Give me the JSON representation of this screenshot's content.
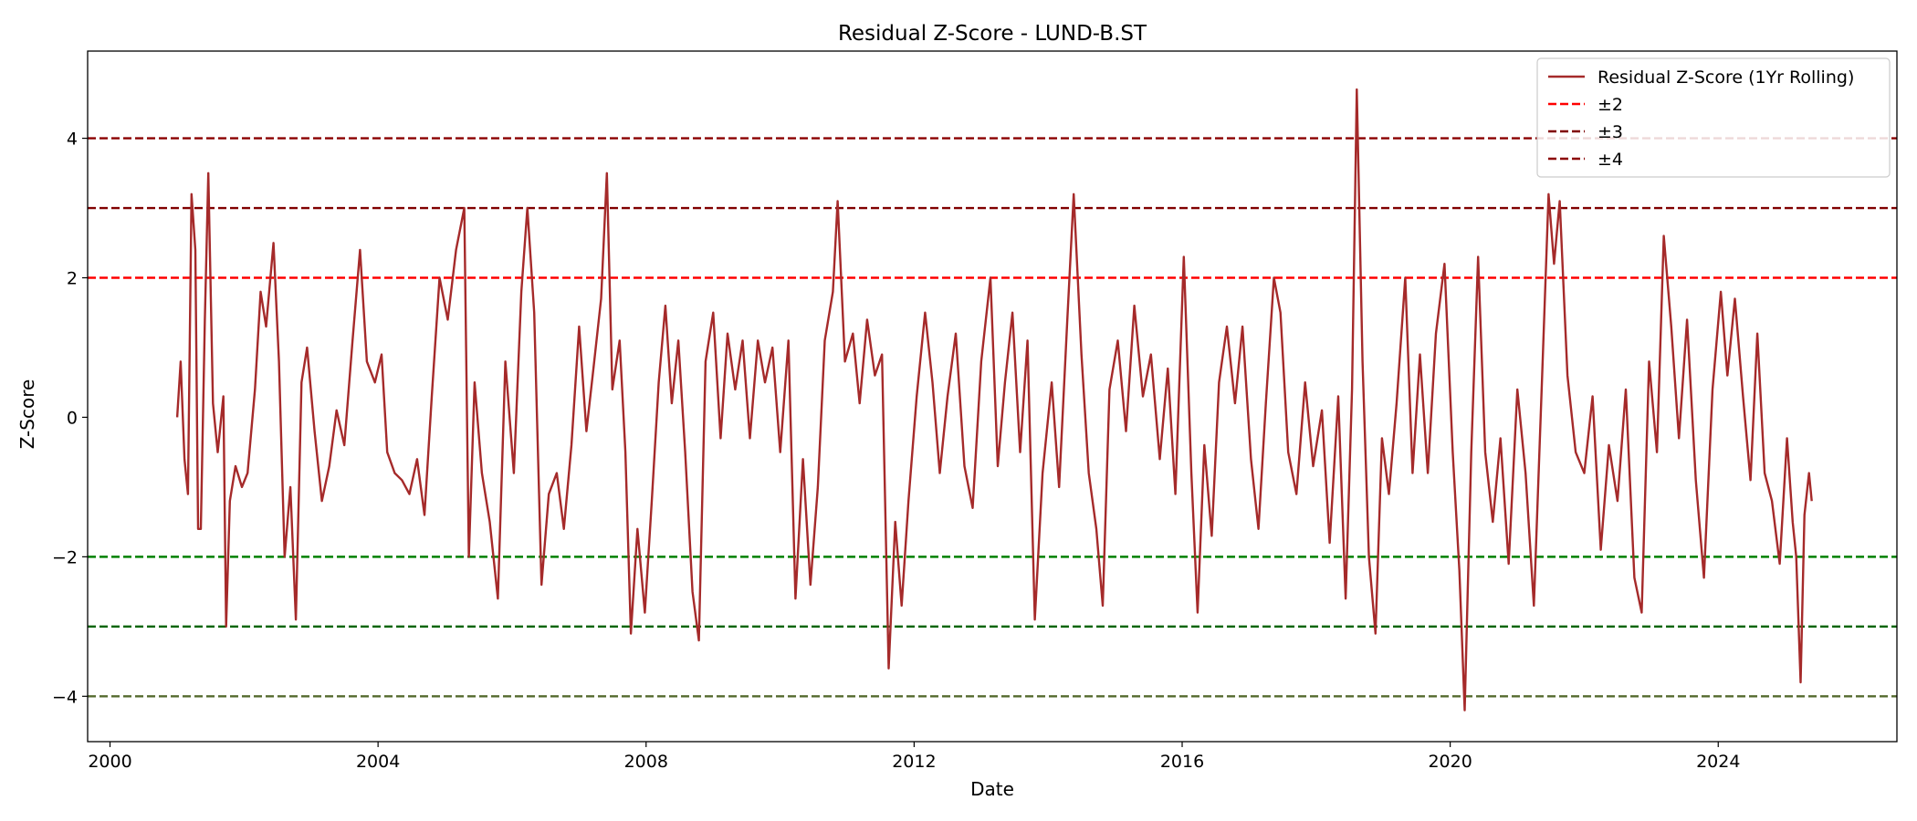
{
  "chart_data": {
    "type": "line",
    "title": "Residual Z-Score - LUND-B.ST",
    "xlabel": "Date",
    "ylabel": "Z-Score",
    "xlim": [
      "1999-09-01",
      "2026-09-01"
    ],
    "ylim": [
      -4.65,
      5.25
    ],
    "grid": false,
    "legend_position": "top-right",
    "x_ticks": [
      {
        "value": "2000-01-01",
        "label": "2000"
      },
      {
        "value": "2004-01-01",
        "label": "2004"
      },
      {
        "value": "2008-01-01",
        "label": "2008"
      },
      {
        "value": "2012-01-01",
        "label": "2012"
      },
      {
        "value": "2016-01-01",
        "label": "2016"
      },
      {
        "value": "2020-01-01",
        "label": "2020"
      },
      {
        "value": "2024-01-01",
        "label": "2024"
      }
    ],
    "y_ticks": [
      {
        "value": -4,
        "label": "−4"
      },
      {
        "value": -2,
        "label": "−2"
      },
      {
        "value": 0,
        "label": "0"
      },
      {
        "value": 2,
        "label": "2"
      },
      {
        "value": 4,
        "label": "4"
      }
    ],
    "reference_lines": [
      {
        "y": 4,
        "color": "#8b0000",
        "style": "dashed",
        "legend": "±4"
      },
      {
        "y": 3,
        "color": "#800000",
        "style": "dashed",
        "legend": "±3"
      },
      {
        "y": 2,
        "color": "#ff0000",
        "style": "dashed",
        "legend": "±2"
      },
      {
        "y": -2,
        "color": "#008000",
        "style": "dashed"
      },
      {
        "y": -3,
        "color": "#006400",
        "style": "dashed"
      },
      {
        "y": -4,
        "color": "#556b2f",
        "style": "dashed"
      }
    ],
    "series": [
      {
        "name": "Residual Z-Score (1Yr Rolling)",
        "color": "#a52a2a",
        "points": [
          [
            "2001-01-01",
            0.0
          ],
          [
            "2001-01-20",
            0.8
          ],
          [
            "2001-02-10",
            -0.6
          ],
          [
            "2001-03-01",
            -1.1
          ],
          [
            "2001-03-20",
            3.2
          ],
          [
            "2001-04-10",
            2.4
          ],
          [
            "2001-04-25",
            -1.6
          ],
          [
            "2001-05-10",
            -1.6
          ],
          [
            "2001-06-01",
            1.4
          ],
          [
            "2001-06-20",
            3.5
          ],
          [
            "2001-07-15",
            0.2
          ],
          [
            "2001-08-10",
            -0.5
          ],
          [
            "2001-09-10",
            0.3
          ],
          [
            "2001-09-25",
            -3.0
          ],
          [
            "2001-10-15",
            -1.2
          ],
          [
            "2001-11-15",
            -0.7
          ],
          [
            "2001-12-20",
            -1.0
          ],
          [
            "2002-01-20",
            -0.8
          ],
          [
            "2002-03-01",
            0.4
          ],
          [
            "2002-04-01",
            1.8
          ],
          [
            "2002-05-01",
            1.3
          ],
          [
            "2002-06-10",
            2.5
          ],
          [
            "2002-07-10",
            0.8
          ],
          [
            "2002-08-10",
            -2.0
          ],
          [
            "2002-09-10",
            -1.0
          ],
          [
            "2002-10-10",
            -2.9
          ],
          [
            "2002-11-10",
            0.5
          ],
          [
            "2002-12-10",
            1.0
          ],
          [
            "2003-01-20",
            -0.2
          ],
          [
            "2003-03-01",
            -1.2
          ],
          [
            "2003-04-10",
            -0.7
          ],
          [
            "2003-05-20",
            0.1
          ],
          [
            "2003-07-01",
            -0.4
          ],
          [
            "2003-08-15",
            1.1
          ],
          [
            "2003-09-25",
            2.4
          ],
          [
            "2003-11-01",
            0.8
          ],
          [
            "2003-12-15",
            0.5
          ],
          [
            "2004-01-20",
            0.9
          ],
          [
            "2004-02-20",
            -0.5
          ],
          [
            "2004-04-01",
            -0.8
          ],
          [
            "2004-05-10",
            -0.9
          ],
          [
            "2004-06-20",
            -1.1
          ],
          [
            "2004-08-01",
            -0.6
          ],
          [
            "2004-09-10",
            -1.4
          ],
          [
            "2004-10-20",
            0.3
          ],
          [
            "2004-12-01",
            2.0
          ],
          [
            "2005-01-15",
            1.4
          ],
          [
            "2005-03-01",
            2.4
          ],
          [
            "2005-04-15",
            3.0
          ],
          [
            "2005-05-10",
            -2.0
          ],
          [
            "2005-06-10",
            0.5
          ],
          [
            "2005-07-20",
            -0.8
          ],
          [
            "2005-09-01",
            -1.5
          ],
          [
            "2005-10-15",
            -2.6
          ],
          [
            "2005-11-25",
            0.8
          ],
          [
            "2006-01-10",
            -0.8
          ],
          [
            "2006-02-20",
            1.8
          ],
          [
            "2006-03-25",
            3.0
          ],
          [
            "2006-05-01",
            1.5
          ],
          [
            "2006-06-10",
            -2.4
          ],
          [
            "2006-07-20",
            -1.1
          ],
          [
            "2006-09-01",
            -0.8
          ],
          [
            "2006-10-10",
            -1.6
          ],
          [
            "2006-11-20",
            -0.4
          ],
          [
            "2007-01-01",
            1.3
          ],
          [
            "2007-02-10",
            -0.2
          ],
          [
            "2007-03-20",
            0.7
          ],
          [
            "2007-05-01",
            1.7
          ],
          [
            "2007-06-01",
            3.5
          ],
          [
            "2007-07-01",
            0.4
          ],
          [
            "2007-08-10",
            1.1
          ],
          [
            "2007-09-10",
            -0.5
          ],
          [
            "2007-10-10",
            -3.1
          ],
          [
            "2007-11-15",
            -1.6
          ],
          [
            "2007-12-25",
            -2.8
          ],
          [
            "2008-02-01",
            -1.2
          ],
          [
            "2008-03-10",
            0.5
          ],
          [
            "2008-04-15",
            1.6
          ],
          [
            "2008-05-20",
            0.2
          ],
          [
            "2008-06-25",
            1.1
          ],
          [
            "2008-08-01",
            -0.5
          ],
          [
            "2008-09-10",
            -2.5
          ],
          [
            "2008-10-15",
            -3.2
          ],
          [
            "2008-11-20",
            0.8
          ],
          [
            "2009-01-01",
            1.5
          ],
          [
            "2009-02-10",
            -0.3
          ],
          [
            "2009-03-20",
            1.2
          ],
          [
            "2009-05-01",
            0.4
          ],
          [
            "2009-06-10",
            1.1
          ],
          [
            "2009-07-20",
            -0.3
          ],
          [
            "2009-09-01",
            1.1
          ],
          [
            "2009-10-10",
            0.5
          ],
          [
            "2009-11-20",
            1.0
          ],
          [
            "2010-01-01",
            -0.5
          ],
          [
            "2010-02-15",
            1.1
          ],
          [
            "2010-03-25",
            -2.6
          ],
          [
            "2010-05-05",
            -0.6
          ],
          [
            "2010-06-15",
            -2.4
          ],
          [
            "2010-07-25",
            -1.0
          ],
          [
            "2010-09-01",
            1.1
          ],
          [
            "2010-10-15",
            1.8
          ],
          [
            "2010-11-10",
            3.1
          ],
          [
            "2010-12-20",
            0.8
          ],
          [
            "2011-02-01",
            1.2
          ],
          [
            "2011-03-10",
            0.2
          ],
          [
            "2011-04-20",
            1.4
          ],
          [
            "2011-06-01",
            0.6
          ],
          [
            "2011-07-10",
            0.9
          ],
          [
            "2011-08-15",
            -3.6
          ],
          [
            "2011-09-20",
            -1.5
          ],
          [
            "2011-10-25",
            -2.7
          ],
          [
            "2011-12-01",
            -1.2
          ],
          [
            "2012-01-15",
            0.3
          ],
          [
            "2012-03-01",
            1.5
          ],
          [
            "2012-04-10",
            0.5
          ],
          [
            "2012-05-20",
            -0.8
          ],
          [
            "2012-07-01",
            0.3
          ],
          [
            "2012-08-15",
            1.2
          ],
          [
            "2012-10-01",
            -0.7
          ],
          [
            "2012-11-15",
            -1.3
          ],
          [
            "2013-01-01",
            0.8
          ],
          [
            "2013-02-20",
            2.0
          ],
          [
            "2013-04-01",
            -0.7
          ],
          [
            "2013-05-10",
            0.5
          ],
          [
            "2013-06-20",
            1.5
          ],
          [
            "2013-08-01",
            -0.5
          ],
          [
            "2013-09-10",
            1.1
          ],
          [
            "2013-10-20",
            -2.9
          ],
          [
            "2013-12-01",
            -0.8
          ],
          [
            "2014-01-20",
            0.5
          ],
          [
            "2014-03-01",
            -1.0
          ],
          [
            "2014-04-15",
            1.4
          ],
          [
            "2014-05-20",
            3.2
          ],
          [
            "2014-07-01",
            0.9
          ],
          [
            "2014-08-10",
            -0.8
          ],
          [
            "2014-09-20",
            -1.6
          ],
          [
            "2014-10-25",
            -2.7
          ],
          [
            "2014-12-01",
            0.4
          ],
          [
            "2015-01-15",
            1.1
          ],
          [
            "2015-03-01",
            -0.2
          ],
          [
            "2015-04-15",
            1.6
          ],
          [
            "2015-06-01",
            0.3
          ],
          [
            "2015-07-15",
            0.9
          ],
          [
            "2015-09-01",
            -0.6
          ],
          [
            "2015-10-15",
            0.7
          ],
          [
            "2015-11-25",
            -1.1
          ],
          [
            "2016-01-10",
            2.3
          ],
          [
            "2016-02-20",
            -0.8
          ],
          [
            "2016-03-25",
            -2.8
          ],
          [
            "2016-05-01",
            -0.4
          ],
          [
            "2016-06-10",
            -1.7
          ],
          [
            "2016-07-20",
            0.5
          ],
          [
            "2016-09-01",
            1.3
          ],
          [
            "2016-10-15",
            0.2
          ],
          [
            "2016-11-25",
            1.3
          ],
          [
            "2017-01-10",
            -0.6
          ],
          [
            "2017-02-20",
            -1.6
          ],
          [
            "2017-04-01",
            0.2
          ],
          [
            "2017-05-15",
            2.0
          ],
          [
            "2017-06-20",
            1.5
          ],
          [
            "2017-08-01",
            -0.5
          ],
          [
            "2017-09-15",
            -1.1
          ],
          [
            "2017-11-01",
            0.5
          ],
          [
            "2017-12-15",
            -0.7
          ],
          [
            "2018-02-01",
            0.1
          ],
          [
            "2018-03-15",
            -1.8
          ],
          [
            "2018-05-01",
            0.3
          ],
          [
            "2018-06-10",
            -2.6
          ],
          [
            "2018-07-15",
            0.4
          ],
          [
            "2018-08-10",
            4.7
          ],
          [
            "2018-09-10",
            0.8
          ],
          [
            "2018-10-15",
            -2.0
          ],
          [
            "2018-11-20",
            -3.1
          ],
          [
            "2018-12-25",
            -0.3
          ],
          [
            "2019-02-01",
            -1.1
          ],
          [
            "2019-03-15",
            0.2
          ],
          [
            "2019-05-01",
            2.0
          ],
          [
            "2019-06-10",
            -0.8
          ],
          [
            "2019-07-20",
            0.9
          ],
          [
            "2019-09-01",
            -0.8
          ],
          [
            "2019-10-15",
            1.2
          ],
          [
            "2019-12-01",
            2.2
          ],
          [
            "2020-01-15",
            -0.5
          ],
          [
            "2020-02-20",
            -2.2
          ],
          [
            "2020-03-20",
            -4.2
          ],
          [
            "2020-04-25",
            -0.5
          ],
          [
            "2020-06-01",
            2.3
          ],
          [
            "2020-07-10",
            -0.5
          ],
          [
            "2020-08-20",
            -1.5
          ],
          [
            "2020-10-01",
            -0.3
          ],
          [
            "2020-11-15",
            -2.1
          ],
          [
            "2021-01-01",
            0.4
          ],
          [
            "2021-02-15",
            -0.8
          ],
          [
            "2021-04-01",
            -2.7
          ],
          [
            "2021-05-15",
            0.5
          ],
          [
            "2021-06-20",
            3.2
          ],
          [
            "2021-07-20",
            2.2
          ],
          [
            "2021-08-20",
            3.1
          ],
          [
            "2021-10-01",
            0.6
          ],
          [
            "2021-11-15",
            -0.5
          ],
          [
            "2022-01-01",
            -0.8
          ],
          [
            "2022-02-15",
            0.3
          ],
          [
            "2022-04-01",
            -1.9
          ],
          [
            "2022-05-15",
            -0.4
          ],
          [
            "2022-07-01",
            -1.2
          ],
          [
            "2022-08-15",
            0.4
          ],
          [
            "2022-10-01",
            -2.3
          ],
          [
            "2022-11-10",
            -2.8
          ],
          [
            "2022-12-20",
            0.8
          ],
          [
            "2023-02-01",
            -0.5
          ],
          [
            "2023-03-10",
            2.6
          ],
          [
            "2023-04-20",
            1.3
          ],
          [
            "2023-06-01",
            -0.3
          ],
          [
            "2023-07-15",
            1.4
          ],
          [
            "2023-09-01",
            -0.9
          ],
          [
            "2023-10-15",
            -2.3
          ],
          [
            "2023-12-01",
            0.4
          ],
          [
            "2024-01-15",
            1.8
          ],
          [
            "2024-02-20",
            0.6
          ],
          [
            "2024-04-01",
            1.7
          ],
          [
            "2024-05-15",
            0.3
          ],
          [
            "2024-06-25",
            -0.9
          ],
          [
            "2024-08-01",
            1.2
          ],
          [
            "2024-09-10",
            -0.8
          ],
          [
            "2024-10-20",
            -1.2
          ],
          [
            "2024-12-01",
            -2.1
          ],
          [
            "2025-01-10",
            -0.3
          ],
          [
            "2025-02-10",
            -1.5
          ],
          [
            "2025-03-01",
            -2.0
          ],
          [
            "2025-03-25",
            -3.8
          ],
          [
            "2025-04-15",
            -1.4
          ],
          [
            "2025-05-10",
            -0.8
          ],
          [
            "2025-05-25",
            -1.2
          ]
        ]
      }
    ],
    "legend": [
      {
        "label": "Residual Z-Score (1Yr Rolling)",
        "color": "#a52a2a",
        "style": "solid"
      },
      {
        "label": "±2",
        "color": "#ff0000",
        "style": "dashed"
      },
      {
        "label": "±3",
        "color": "#800000",
        "style": "dashed"
      },
      {
        "label": "±4",
        "color": "#8b0000",
        "style": "dashed"
      }
    ]
  }
}
